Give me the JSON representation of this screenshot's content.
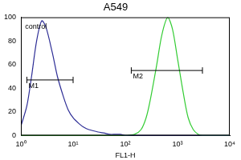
{
  "chart_data": {
    "type": "line",
    "title": "A549",
    "x_label": "FL1-H",
    "log": "x",
    "grid": false,
    "legend": false,
    "x": [
      1,
      1.3,
      1.6,
      2,
      2.5,
      3,
      4,
      5,
      6.5,
      8,
      10,
      13,
      16,
      20,
      30,
      40,
      50,
      65,
      80,
      100,
      150,
      200,
      250,
      300,
      400,
      500,
      650,
      800,
      1000,
      1300,
      1600,
      2000,
      2500,
      3000,
      5000,
      10000
    ],
    "series": [
      {
        "color": "#2e2e96",
        "values": [
          8,
          25,
          50,
          80,
          97,
          92,
          70,
          50,
          33,
          22,
          15,
          10,
          7,
          5,
          3,
          2,
          1,
          1,
          1,
          0,
          0,
          0,
          0,
          0,
          0,
          0,
          0,
          0,
          0,
          0,
          0,
          0,
          0,
          0,
          0,
          0
        ]
      },
      {
        "color": "#33cc33",
        "values": [
          0,
          0,
          0,
          0,
          0,
          0,
          0,
          0,
          0,
          0,
          0,
          0,
          0,
          0,
          0,
          0,
          0,
          0,
          0,
          0,
          1,
          5,
          15,
          30,
          60,
          85,
          100,
          90,
          65,
          35,
          15,
          5,
          1,
          0,
          0,
          0
        ]
      }
    ],
    "xlim": [
      1,
      10000
    ],
    "xticks": [
      {
        "value": 1,
        "label": "10⁰"
      },
      {
        "value": 10,
        "label": "10¹"
      },
      {
        "value": 100,
        "label": "10²"
      },
      {
        "value": 1000,
        "label": "10³"
      },
      {
        "value": 10000,
        "label": "10⁴"
      }
    ],
    "ylim": [
      0,
      100
    ],
    "yticks": [
      0,
      20,
      40,
      60,
      80,
      100
    ],
    "annotations": [
      {
        "text": "control",
        "x": 1.2,
        "y": 92
      },
      {
        "text": "M1",
        "range": [
          1.3,
          10
        ],
        "y": 47
      },
      {
        "text": "M2",
        "range": [
          130,
          3000
        ],
        "y": 55
      }
    ]
  }
}
